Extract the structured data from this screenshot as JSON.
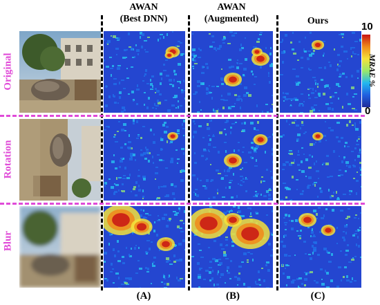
{
  "columns": [
    {
      "title_line1": "AWAN",
      "title_line2": "(Best DNN)",
      "letter": "(A)"
    },
    {
      "title_line1": "AWAN",
      "title_line2": "(Augmented)",
      "letter": "(B)"
    },
    {
      "title_line1": "Ours",
      "title_line2": "",
      "letter": "(C)"
    }
  ],
  "rows": [
    {
      "label": "Original"
    },
    {
      "label": "Rotation"
    },
    {
      "label": "Blur"
    }
  ],
  "colorbar": {
    "max_label": "10",
    "min_label": "0",
    "axis_label": "MRAE %",
    "colors": [
      "#1e2a9a",
      "#1f5fe0",
      "#22b8f0",
      "#9ae86a",
      "#f5e23a",
      "#f08a1a",
      "#c81414"
    ]
  },
  "colors": {
    "row_label": "#e04bd8",
    "error_low": "#2446d0",
    "error_high": "#b8160f"
  }
}
